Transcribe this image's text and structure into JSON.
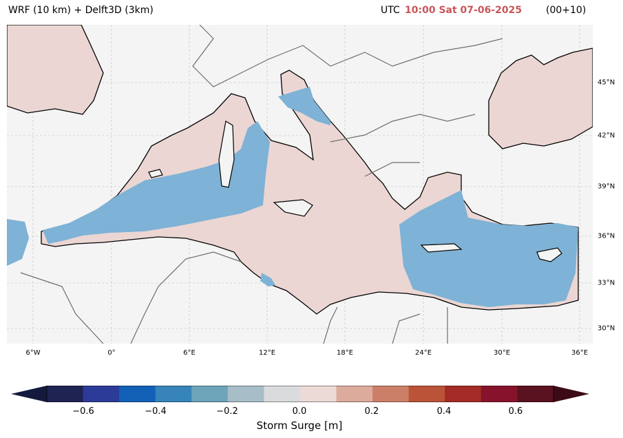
{
  "header": {
    "model_title": "WRF (10 km) + Delft3D (3km)",
    "utc_label": "UTC",
    "valid_time": "10:00 Sat 07-06-2025",
    "lead_time": "(00+10)"
  },
  "map": {
    "extent": {
      "lon": [
        -9,
        37
      ],
      "lat": [
        28.9,
        49
      ]
    },
    "land_color": "#f4f4f4",
    "sea_surge_color": "#7eb2d6",
    "positive_surge_color": "#ebd6d3",
    "longitude_ticks": [
      "6°W",
      "0°",
      "6°E",
      "12°E",
      "18°E",
      "24°E",
      "30°E",
      "36°E"
    ],
    "latitude_ticks": [
      "45°N",
      "42°N",
      "39°N",
      "36°N",
      "33°N",
      "30°N"
    ]
  },
  "colorbar": {
    "label": "Storm Surge [m]",
    "range": [
      -0.7,
      0.7
    ],
    "tick_labels": [
      "−0.6",
      "−0.4",
      "−0.2",
      "0.0",
      "0.2",
      "0.4",
      "0.6"
    ],
    "colors": [
      "#1e2352",
      "#2d3b98",
      "#1261b6",
      "#3784bb",
      "#6ea4ba",
      "#a7bec8",
      "#d9dbdc",
      "#ecdad6",
      "#dcab9b",
      "#cc7f68",
      "#ba5338",
      "#a32a26",
      "#86132b",
      "#5a1120"
    ],
    "extend_min_color": "#141a3e",
    "extend_max_color": "#3c0a16"
  }
}
